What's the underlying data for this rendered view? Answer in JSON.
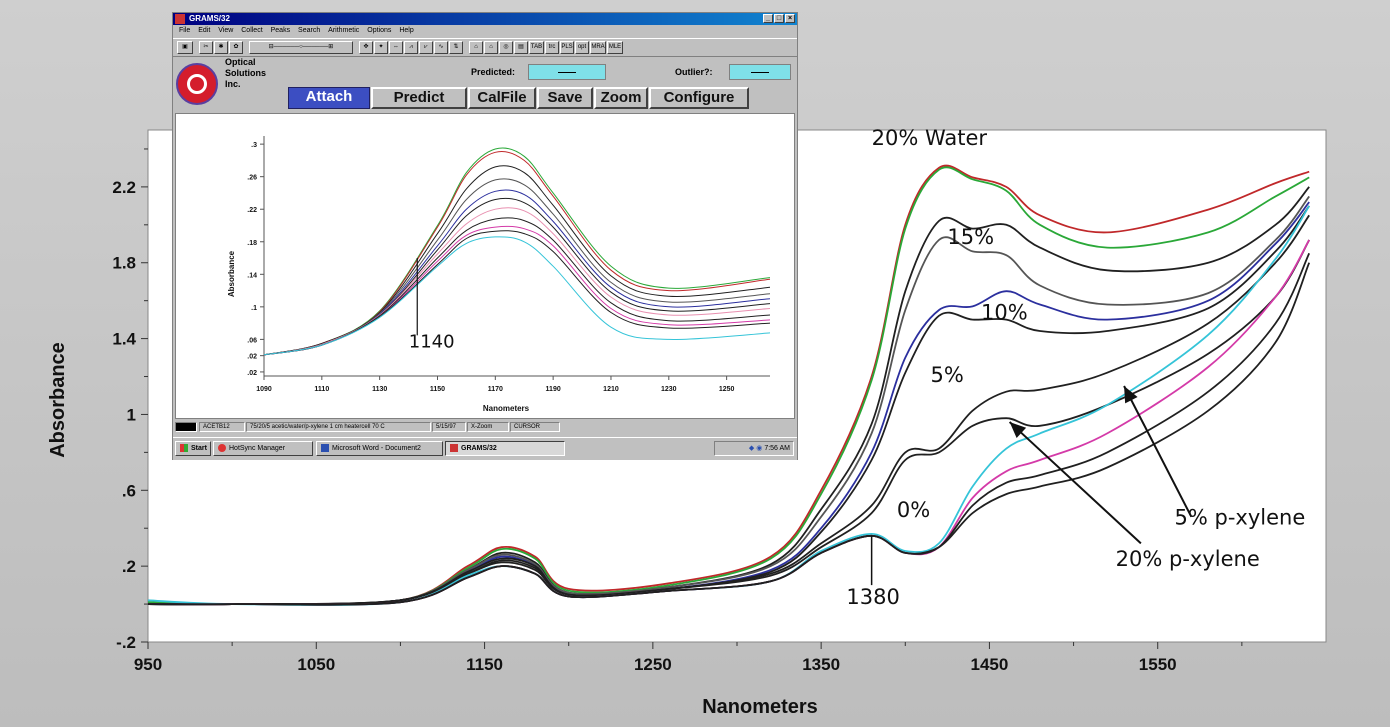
{
  "colors": {
    "red": "#c0282a",
    "green": "#2aa838",
    "black": "#202020",
    "gray": "#555555",
    "blue": "#2b2f9e",
    "cyan": "#35c4d8",
    "magenta": "#d43aa8",
    "pink": "#e890b0",
    "accent_button": "#3c4ec2"
  },
  "chart_data": [
    {
      "type": "line",
      "xlabel": "Nanometers",
      "ylabel": "Absorbance",
      "xlim": [
        950,
        1650
      ],
      "ylim": [
        -0.2,
        2.5
      ],
      "x_ticks": [
        "950",
        "1050",
        "1150",
        "1250",
        "1350",
        "1450",
        "1550"
      ],
      "y_ticks": [
        "-.2",
        ".2",
        ".6",
        "1",
        "1.4",
        "1.8",
        "2.2"
      ],
      "grid": false,
      "series": [
        {
          "color": "red",
          "x": [
            950,
            1000,
            1100,
            1140,
            1160,
            1180,
            1200,
            1260,
            1320,
            1350,
            1380,
            1400,
            1420,
            1440,
            1460,
            1480,
            1520,
            1580,
            1620,
            1640
          ],
          "values": [
            0.01,
            0.0,
            0.02,
            0.2,
            0.3,
            0.25,
            0.08,
            0.11,
            0.25,
            0.6,
            1.2,
            2.0,
            2.3,
            2.25,
            2.2,
            2.05,
            1.96,
            2.08,
            2.22,
            2.28
          ]
        },
        {
          "color": "green",
          "x": [
            950,
            1000,
            1100,
            1140,
            1160,
            1180,
            1200,
            1260,
            1320,
            1350,
            1380,
            1400,
            1420,
            1440,
            1460,
            1480,
            1520,
            1580,
            1620,
            1640
          ],
          "values": [
            0.01,
            0.0,
            0.02,
            0.19,
            0.29,
            0.24,
            0.07,
            0.1,
            0.24,
            0.58,
            1.18,
            1.98,
            2.29,
            2.24,
            2.18,
            2.0,
            1.88,
            1.96,
            2.15,
            2.25
          ]
        },
        {
          "color": "black",
          "x": [
            950,
            1000,
            1100,
            1140,
            1160,
            1180,
            1200,
            1260,
            1320,
            1350,
            1380,
            1400,
            1420,
            1440,
            1460,
            1480,
            1520,
            1580,
            1620,
            1640
          ],
          "values": [
            0.0,
            0.0,
            0.02,
            0.18,
            0.27,
            0.22,
            0.06,
            0.09,
            0.21,
            0.5,
            0.95,
            1.65,
            2.02,
            1.98,
            2.0,
            1.88,
            1.76,
            1.8,
            2.0,
            2.2
          ]
        },
        {
          "color": "gray",
          "x": [
            950,
            1000,
            1100,
            1140,
            1160,
            1180,
            1200,
            1260,
            1320,
            1350,
            1380,
            1400,
            1420,
            1440,
            1460,
            1480,
            1520,
            1580,
            1620,
            1640
          ],
          "values": [
            0.0,
            0.0,
            0.02,
            0.18,
            0.26,
            0.21,
            0.06,
            0.09,
            0.2,
            0.46,
            0.9,
            1.55,
            1.92,
            1.86,
            1.84,
            1.68,
            1.58,
            1.64,
            1.92,
            2.15
          ]
        },
        {
          "color": "blue",
          "x": [
            950,
            1000,
            1100,
            1140,
            1160,
            1180,
            1200,
            1260,
            1320,
            1350,
            1380,
            1400,
            1420,
            1440,
            1460,
            1480,
            1520,
            1580,
            1620,
            1640
          ],
          "values": [
            0.0,
            0.0,
            0.02,
            0.17,
            0.25,
            0.2,
            0.05,
            0.08,
            0.18,
            0.4,
            0.8,
            1.3,
            1.55,
            1.57,
            1.65,
            1.58,
            1.5,
            1.6,
            1.9,
            2.12
          ]
        },
        {
          "color": "black",
          "x": [
            950,
            1000,
            1100,
            1140,
            1160,
            1180,
            1200,
            1260,
            1320,
            1350,
            1380,
            1400,
            1420,
            1440,
            1460,
            1480,
            1520,
            1580,
            1620,
            1640
          ],
          "values": [
            0.0,
            0.0,
            0.02,
            0.17,
            0.24,
            0.2,
            0.05,
            0.08,
            0.17,
            0.38,
            0.76,
            1.22,
            1.52,
            1.5,
            1.5,
            1.44,
            1.44,
            1.56,
            1.86,
            2.1
          ]
        },
        {
          "color": "black",
          "x": [
            950,
            1000,
            1100,
            1140,
            1160,
            1180,
            1200,
            1260,
            1320,
            1350,
            1380,
            1400,
            1420,
            1440,
            1460,
            1480,
            1520,
            1580,
            1620,
            1640
          ],
          "values": [
            0.0,
            0.0,
            0.02,
            0.16,
            0.23,
            0.19,
            0.05,
            0.08,
            0.16,
            0.32,
            0.52,
            0.8,
            0.82,
            1.02,
            1.12,
            1.13,
            1.22,
            1.48,
            1.8,
            2.05
          ]
        },
        {
          "color": "black",
          "x": [
            950,
            1000,
            1100,
            1140,
            1160,
            1180,
            1200,
            1260,
            1320,
            1350,
            1380,
            1400,
            1420,
            1440,
            1460,
            1480,
            1520,
            1580,
            1620,
            1640
          ],
          "values": [
            0.0,
            0.0,
            0.02,
            0.16,
            0.22,
            0.18,
            0.05,
            0.08,
            0.15,
            0.3,
            0.48,
            0.76,
            0.8,
            0.94,
            0.98,
            0.94,
            1.05,
            1.32,
            1.62,
            1.92
          ]
        },
        {
          "color": "cyan",
          "x": [
            950,
            1000,
            1100,
            1140,
            1160,
            1180,
            1200,
            1260,
            1320,
            1350,
            1380,
            1400,
            1420,
            1440,
            1460,
            1480,
            1520,
            1580,
            1620,
            1640
          ],
          "values": [
            0.02,
            0.0,
            0.01,
            0.15,
            0.2,
            0.16,
            0.04,
            0.07,
            0.12,
            0.28,
            0.37,
            0.28,
            0.32,
            0.62,
            0.82,
            0.9,
            1.05,
            1.42,
            1.82,
            2.1
          ]
        },
        {
          "color": "magenta",
          "x": [
            950,
            1000,
            1100,
            1140,
            1160,
            1180,
            1200,
            1260,
            1320,
            1350,
            1380,
            1400,
            1420,
            1440,
            1460,
            1480,
            1520,
            1580,
            1620,
            1640
          ],
          "values": [
            0.0,
            0.0,
            0.01,
            0.14,
            0.2,
            0.16,
            0.04,
            0.07,
            0.12,
            0.27,
            0.36,
            0.27,
            0.3,
            0.56,
            0.7,
            0.76,
            0.9,
            1.25,
            1.62,
            1.92
          ]
        },
        {
          "color": "black",
          "x": [
            950,
            1000,
            1100,
            1140,
            1160,
            1180,
            1200,
            1260,
            1320,
            1350,
            1380,
            1400,
            1420,
            1440,
            1460,
            1480,
            1520,
            1580,
            1620,
            1640
          ],
          "values": [
            0.0,
            0.0,
            0.01,
            0.14,
            0.2,
            0.16,
            0.04,
            0.07,
            0.12,
            0.27,
            0.36,
            0.27,
            0.3,
            0.52,
            0.64,
            0.68,
            0.8,
            1.12,
            1.48,
            1.85
          ]
        },
        {
          "color": "black",
          "x": [
            950,
            1000,
            1100,
            1140,
            1160,
            1180,
            1200,
            1260,
            1320,
            1350,
            1380,
            1400,
            1420,
            1440,
            1460,
            1480,
            1520,
            1580,
            1620,
            1640
          ],
          "values": [
            0.0,
            0.0,
            0.01,
            0.14,
            0.2,
            0.16,
            0.04,
            0.07,
            0.12,
            0.27,
            0.36,
            0.27,
            0.3,
            0.48,
            0.58,
            0.62,
            0.72,
            1.02,
            1.38,
            1.8
          ]
        }
      ],
      "annotations": [
        {
          "text": "20% Water",
          "x": 1380,
          "y": 2.42
        },
        {
          "text": "15%",
          "x": 1425,
          "y": 1.9
        },
        {
          "text": "10%",
          "x": 1445,
          "y": 1.5
        },
        {
          "text": "5%",
          "x": 1415,
          "y": 1.17
        },
        {
          "text": "0%",
          "x": 1395,
          "y": 0.46
        },
        {
          "text": "1380",
          "x": 1365,
          "y": 0.0
        },
        {
          "text": "5% p-xylene",
          "x": 1560,
          "y": 0.42
        },
        {
          "text": "20% p-xylene",
          "x": 1525,
          "y": 0.2
        }
      ]
    },
    {
      "type": "line",
      "xlabel": "Nanometers",
      "ylabel": "Absorbance",
      "xlim": [
        1090,
        1265
      ],
      "ylim": [
        0.015,
        0.31
      ],
      "x_ticks": [
        "1090",
        "1110",
        "1130",
        "1150",
        "1170",
        "1190",
        "1210",
        "1230",
        "1250"
      ],
      "y_ticks": [
        ".02",
        ".02",
        ".06",
        ".1",
        ".14",
        ".18",
        ".22",
        ".26",
        ".3"
      ],
      "grid": false,
      "series": [
        {
          "color": "green",
          "x": [
            1090,
            1110,
            1130,
            1150,
            1160,
            1170,
            1180,
            1190,
            1210,
            1230,
            1265
          ],
          "values": [
            0.041,
            0.055,
            0.095,
            0.2,
            0.265,
            0.294,
            0.285,
            0.24,
            0.15,
            0.123,
            0.136
          ]
        },
        {
          "color": "red",
          "x": [
            1090,
            1110,
            1130,
            1150,
            1160,
            1170,
            1180,
            1190,
            1210,
            1230,
            1265
          ],
          "values": [
            0.041,
            0.055,
            0.094,
            0.198,
            0.262,
            0.29,
            0.28,
            0.236,
            0.145,
            0.12,
            0.134
          ]
        },
        {
          "color": "black",
          "x": [
            1090,
            1110,
            1130,
            1150,
            1160,
            1170,
            1180,
            1190,
            1210,
            1230,
            1265
          ],
          "values": [
            0.041,
            0.055,
            0.093,
            0.19,
            0.245,
            0.272,
            0.265,
            0.225,
            0.138,
            0.113,
            0.124
          ]
        },
        {
          "color": "gray",
          "x": [
            1090,
            1110,
            1130,
            1150,
            1160,
            1170,
            1180,
            1190,
            1210,
            1230,
            1265
          ],
          "values": [
            0.041,
            0.054,
            0.092,
            0.182,
            0.232,
            0.256,
            0.25,
            0.214,
            0.13,
            0.106,
            0.116
          ]
        },
        {
          "color": "blue",
          "x": [
            1090,
            1110,
            1130,
            1150,
            1160,
            1170,
            1180,
            1190,
            1210,
            1230,
            1265
          ],
          "values": [
            0.041,
            0.054,
            0.091,
            0.175,
            0.22,
            0.242,
            0.238,
            0.205,
            0.124,
            0.1,
            0.11
          ]
        },
        {
          "color": "black",
          "x": [
            1090,
            1110,
            1130,
            1150,
            1160,
            1170,
            1180,
            1190,
            1210,
            1230,
            1265
          ],
          "values": [
            0.041,
            0.054,
            0.09,
            0.17,
            0.212,
            0.232,
            0.228,
            0.198,
            0.118,
            0.095,
            0.104
          ]
        },
        {
          "color": "pink",
          "x": [
            1090,
            1110,
            1130,
            1150,
            1160,
            1170,
            1180,
            1190,
            1210,
            1230,
            1265
          ],
          "values": [
            0.041,
            0.054,
            0.09,
            0.165,
            0.202,
            0.22,
            0.218,
            0.19,
            0.112,
            0.09,
            0.098
          ]
        },
        {
          "color": "black",
          "x": [
            1090,
            1110,
            1130,
            1150,
            1160,
            1170,
            1180,
            1190,
            1210,
            1230,
            1265
          ],
          "values": [
            0.041,
            0.053,
            0.089,
            0.16,
            0.194,
            0.208,
            0.206,
            0.182,
            0.105,
            0.083,
            0.09
          ]
        },
        {
          "color": "magenta",
          "x": [
            1090,
            1110,
            1130,
            1150,
            1160,
            1170,
            1180,
            1190,
            1210,
            1230,
            1265
          ],
          "values": [
            0.041,
            0.053,
            0.088,
            0.156,
            0.188,
            0.198,
            0.196,
            0.175,
            0.098,
            0.078,
            0.084
          ]
        },
        {
          "color": "black",
          "x": [
            1090,
            1110,
            1130,
            1150,
            1160,
            1170,
            1180,
            1190,
            1210,
            1230,
            1265
          ],
          "values": [
            0.041,
            0.053,
            0.088,
            0.152,
            0.184,
            0.193,
            0.19,
            0.168,
            0.093,
            0.074,
            0.08
          ]
        },
        {
          "color": "cyan",
          "x": [
            1090,
            1110,
            1130,
            1150,
            1160,
            1170,
            1180,
            1190,
            1210,
            1230,
            1265
          ],
          "values": [
            0.041,
            0.053,
            0.087,
            0.15,
            0.178,
            0.186,
            0.18,
            0.15,
            0.075,
            0.06,
            0.068
          ]
        }
      ],
      "annotations": [
        {
          "text": "1140",
          "x": 1148,
          "y": 0.05
        }
      ]
    }
  ],
  "window": {
    "title": "GRAMS/32",
    "menu": [
      "File",
      "Edit",
      "View",
      "Collect",
      "Peaks",
      "Search",
      "Arithmetic",
      "Options",
      "Help"
    ],
    "toolbar_labels": [
      "TAB",
      "trc",
      "PLS",
      "opt",
      "MRA",
      "MLE"
    ],
    "logo_lines": [
      "Optical",
      "Solutions",
      "Inc."
    ],
    "predicted_label": "Predicted:",
    "outlier_label": "Outlier?:",
    "buttons": [
      "Attach",
      "Predict",
      "CalFile",
      "Save",
      "Zoom",
      "Configure"
    ],
    "status": [
      "ACETB12",
      "75/20/5 acetic/water/p-xylene 1 cm heatercell 70 C",
      "5/15/97",
      "X-Zoom",
      "CURSOR"
    ],
    "taskbar": {
      "start": "Start",
      "tasks": [
        "HotSync Manager",
        "Microsoft Word - Document2",
        "GRAMS/32"
      ],
      "clock": "7:56 AM"
    }
  }
}
